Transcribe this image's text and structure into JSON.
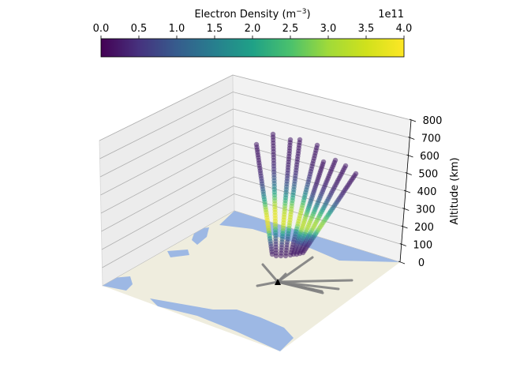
{
  "chart_data": {
    "type": "scatter",
    "projection": "3d",
    "colorbar": {
      "label_main": "Electron Density (m",
      "label_sup": "−3",
      "label_close": ")",
      "offset_text": "1e11",
      "ticks": [
        "0.0",
        "0.5",
        "1.0",
        "1.5",
        "2.0",
        "2.5",
        "3.0",
        "3.5",
        "4.0"
      ],
      "range": [
        0,
        4
      ],
      "colormap": "viridis",
      "placement": "top"
    },
    "z_axis": {
      "label": "Altitude (km)",
      "range": [
        0,
        800
      ],
      "ticks": [
        "0",
        "100",
        "200",
        "300",
        "400",
        "500",
        "600",
        "700",
        "800"
      ]
    },
    "grid": true,
    "colors": {
      "land": "#efedde",
      "water": "#9db8e4",
      "radar_beam": "#808080",
      "radar_marker": "#000000",
      "pane_left": "#ececec",
      "pane_right": "#f2f2f2"
    },
    "beams": [
      {
        "peak_altitude_km": 280,
        "peak_density": 3.6
      },
      {
        "peak_altitude_km": 300,
        "peak_density": 3.5
      },
      {
        "peak_altitude_km": 290,
        "peak_density": 3.3
      },
      {
        "peak_altitude_km": 300,
        "peak_density": 3.2
      },
      {
        "peak_altitude_km": 310,
        "peak_density": 3.1
      },
      {
        "peak_altitude_km": 300,
        "peak_density": 3.0
      },
      {
        "peak_altitude_km": 290,
        "peak_density": 2.9
      },
      {
        "peak_altitude_km": 300,
        "peak_density": 2.8
      },
      {
        "peak_altitude_km": 310,
        "peak_density": 2.7
      }
    ]
  }
}
